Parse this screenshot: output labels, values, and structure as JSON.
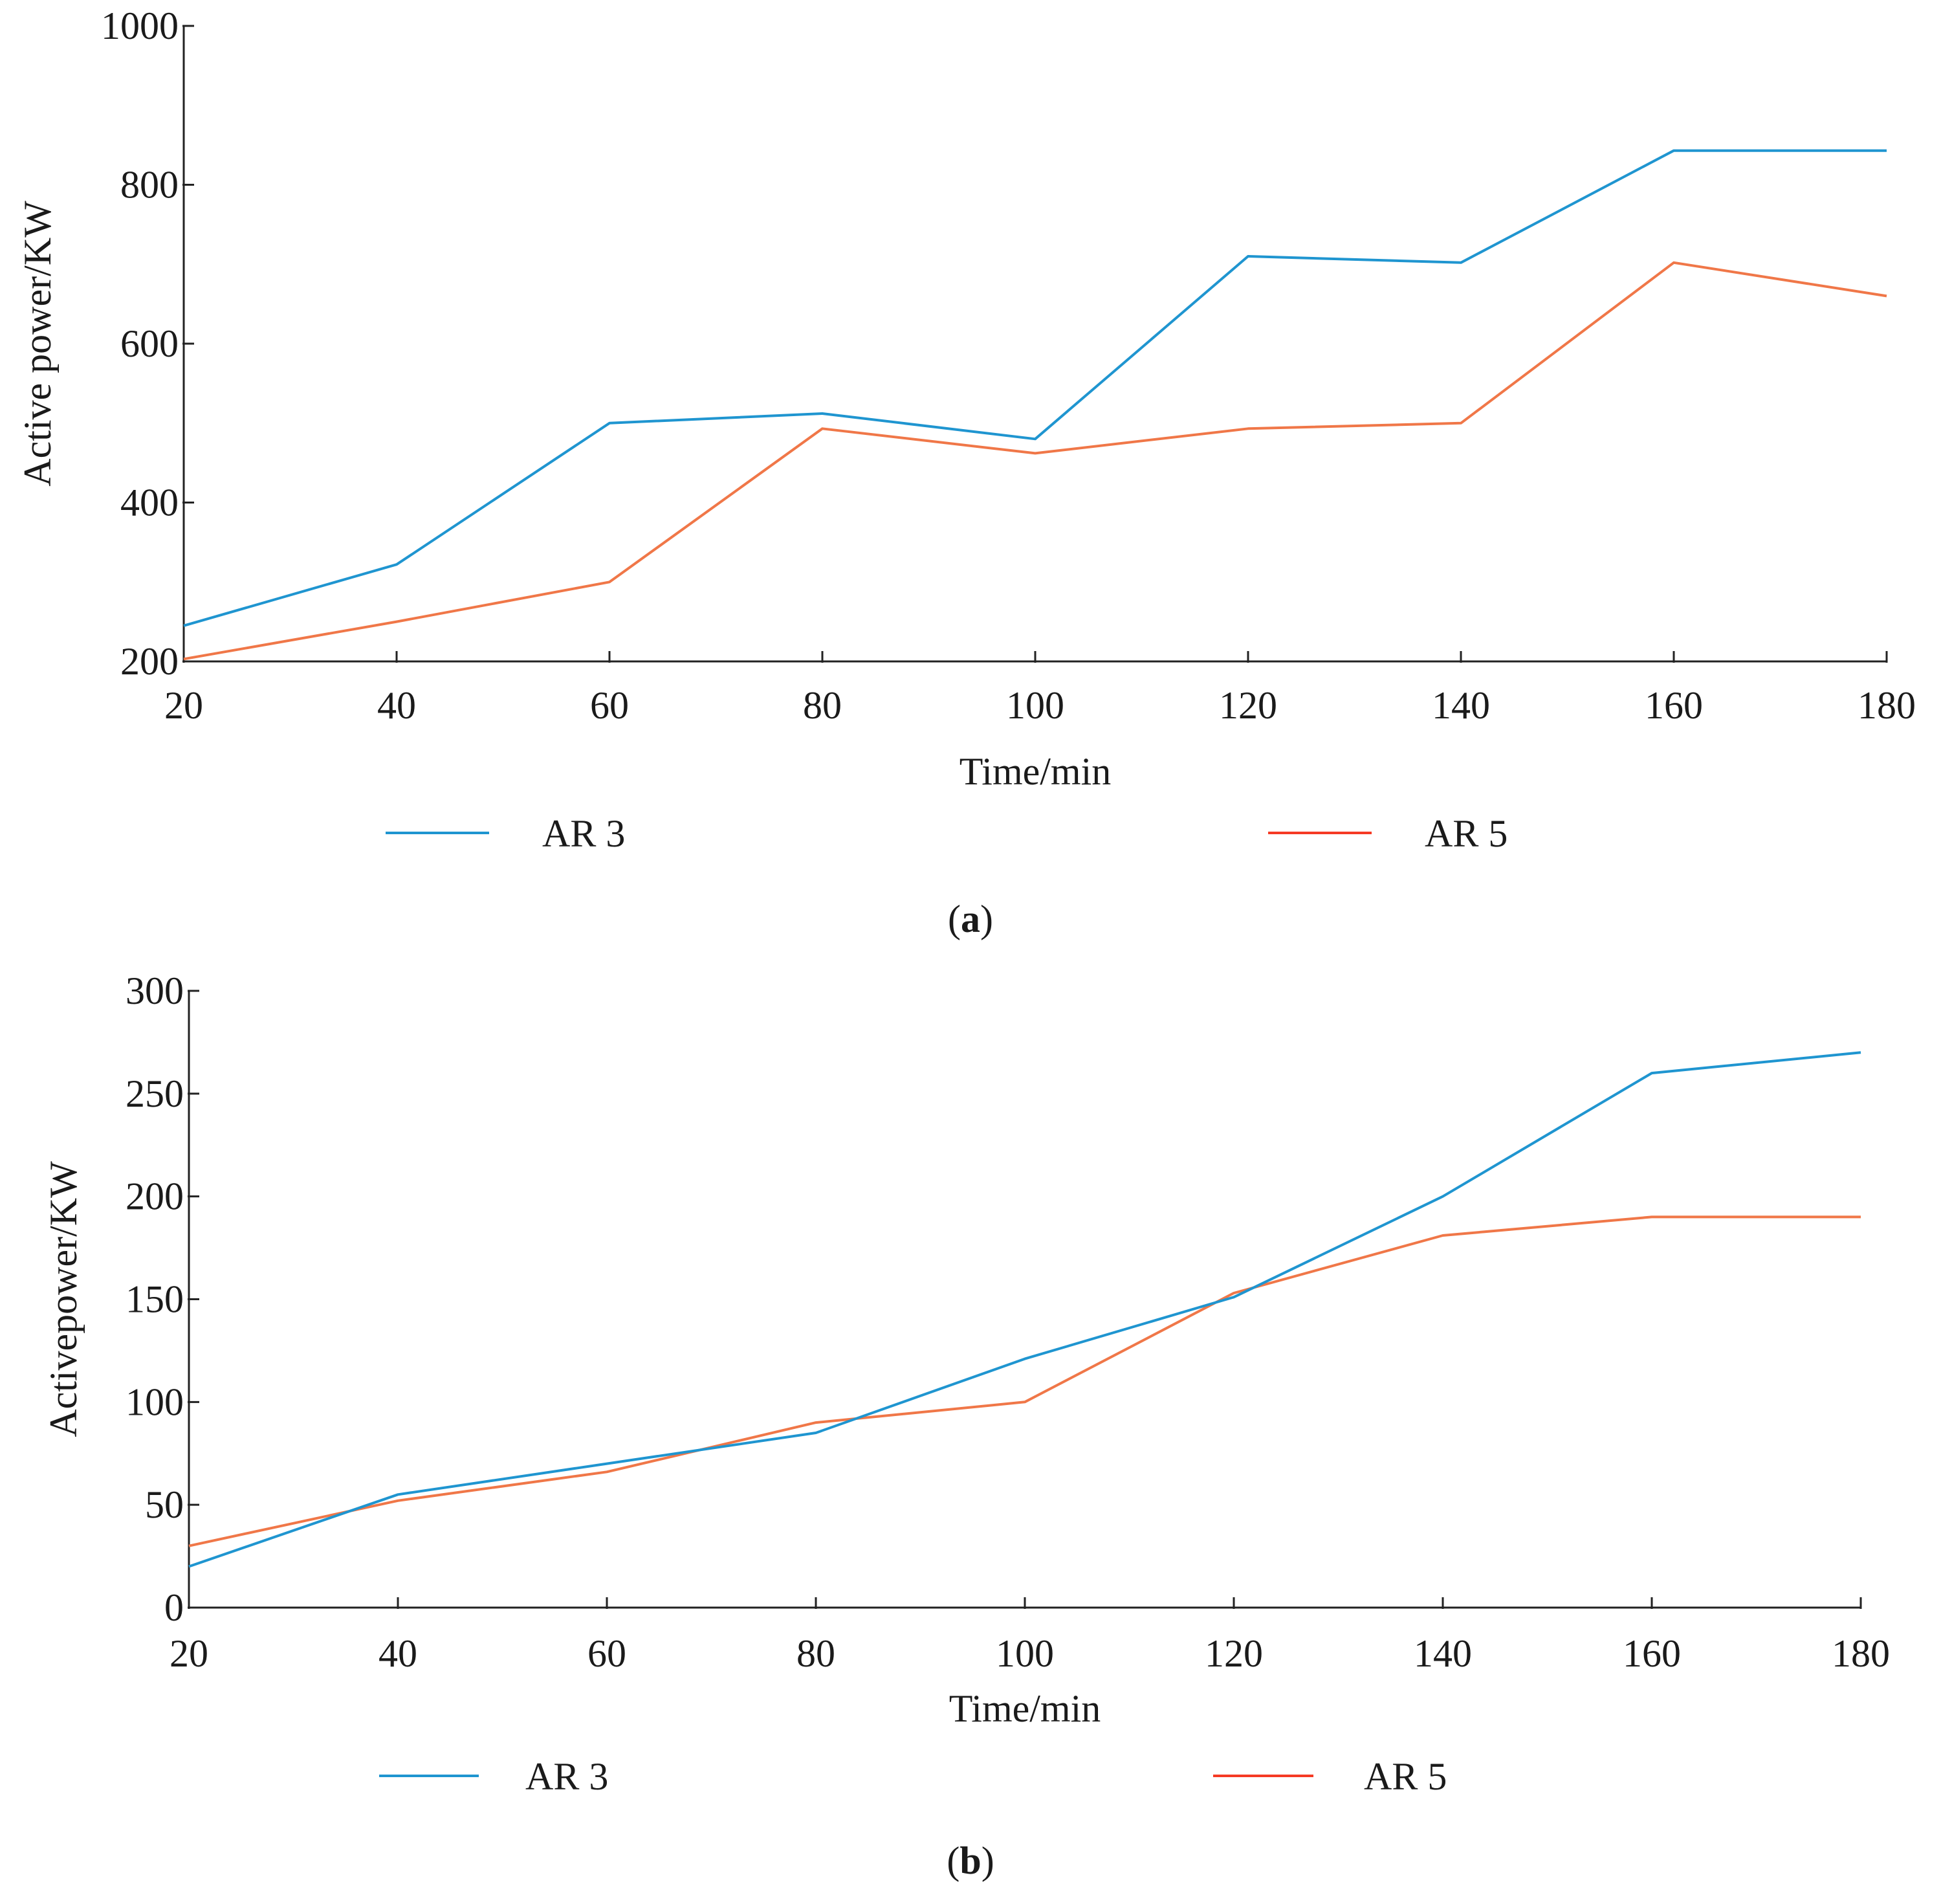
{
  "colors": {
    "ar3_line": "#1f95d0",
    "ar5_line": "#f07748",
    "ar3_legend": "#1f95d0",
    "ar5_legend": "#f53a24"
  },
  "chart_data": [
    {
      "type": "line",
      "panel_label": "a",
      "title": "",
      "xlabel": "Time/min",
      "ylabel": "Active power/KW",
      "x": [
        20,
        40,
        60,
        80,
        100,
        120,
        140,
        160,
        180
      ],
      "xlim": [
        20,
        180
      ],
      "ylim": [
        200,
        1000
      ],
      "xticks": [
        20,
        40,
        60,
        80,
        100,
        120,
        140,
        160,
        180
      ],
      "yticks": [
        200,
        400,
        600,
        800,
        1000
      ],
      "grid": false,
      "legend_placement": "bottom",
      "series": [
        {
          "name": "AR 3",
          "values": [
            245,
            322,
            500,
            512,
            480,
            710,
            702,
            843,
            843
          ]
        },
        {
          "name": "AR 5",
          "values": [
            203,
            250,
            300,
            493,
            462,
            493,
            500,
            702,
            660
          ]
        }
      ]
    },
    {
      "type": "line",
      "panel_label": "b",
      "title": "",
      "xlabel": "Time/min",
      "ylabel": "Activepower/KW",
      "x": [
        20,
        40,
        60,
        80,
        100,
        120,
        140,
        160,
        180
      ],
      "xlim": [
        20,
        180
      ],
      "ylim": [
        0,
        300
      ],
      "xticks": [
        20,
        40,
        60,
        80,
        100,
        120,
        140,
        160,
        180
      ],
      "yticks": [
        0,
        50,
        100,
        150,
        200,
        250,
        300
      ],
      "grid": false,
      "legend_placement": "bottom",
      "series": [
        {
          "name": "AR 3",
          "values": [
            20,
            55,
            70,
            85,
            121,
            151,
            200,
            260,
            270
          ]
        },
        {
          "name": "AR 5",
          "values": [
            30,
            52,
            66,
            90,
            100,
            153,
            181,
            190,
            190
          ]
        }
      ]
    }
  ]
}
